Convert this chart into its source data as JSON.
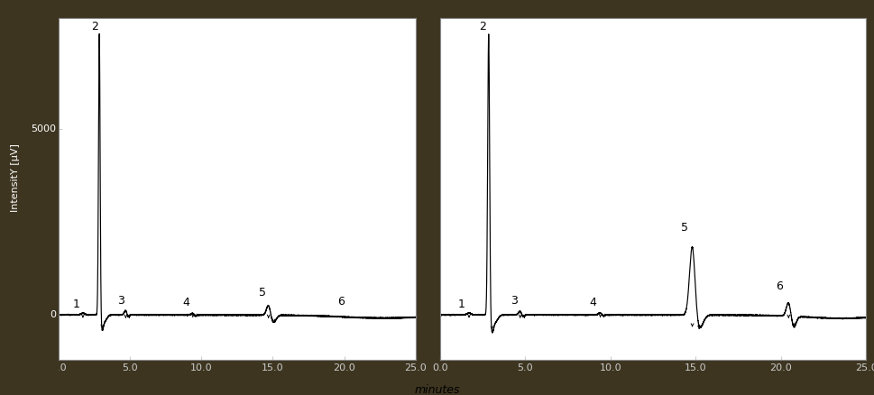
{
  "fig_width": 9.7,
  "fig_height": 4.38,
  "dpi": 100,
  "bg_color": "#3d3520",
  "plot_bg": "#ffffff",
  "line_color": "#000000",
  "tick_label_color": "#cccccc",
  "xlabel": "minutes",
  "ylabel": "IntensitY [µV]",
  "xlim": [
    0.0,
    25.0
  ],
  "xticks": [
    0.0,
    5.0,
    10.0,
    15.0,
    20.0,
    25.0
  ],
  "xtick_labels": [
    "0.0",
    "5.0",
    "10.0",
    "15.0",
    "20.0",
    "25.0"
  ],
  "ylim": [
    -1200,
    8000
  ],
  "ytick_vals": [
    0,
    5000
  ],
  "ytick_labels": [
    "0",
    "5000"
  ],
  "peak_label_fontsize": 9,
  "tick_fontsize": 8,
  "ylabel_fontsize": 8,
  "xlabel_fontsize": 9
}
